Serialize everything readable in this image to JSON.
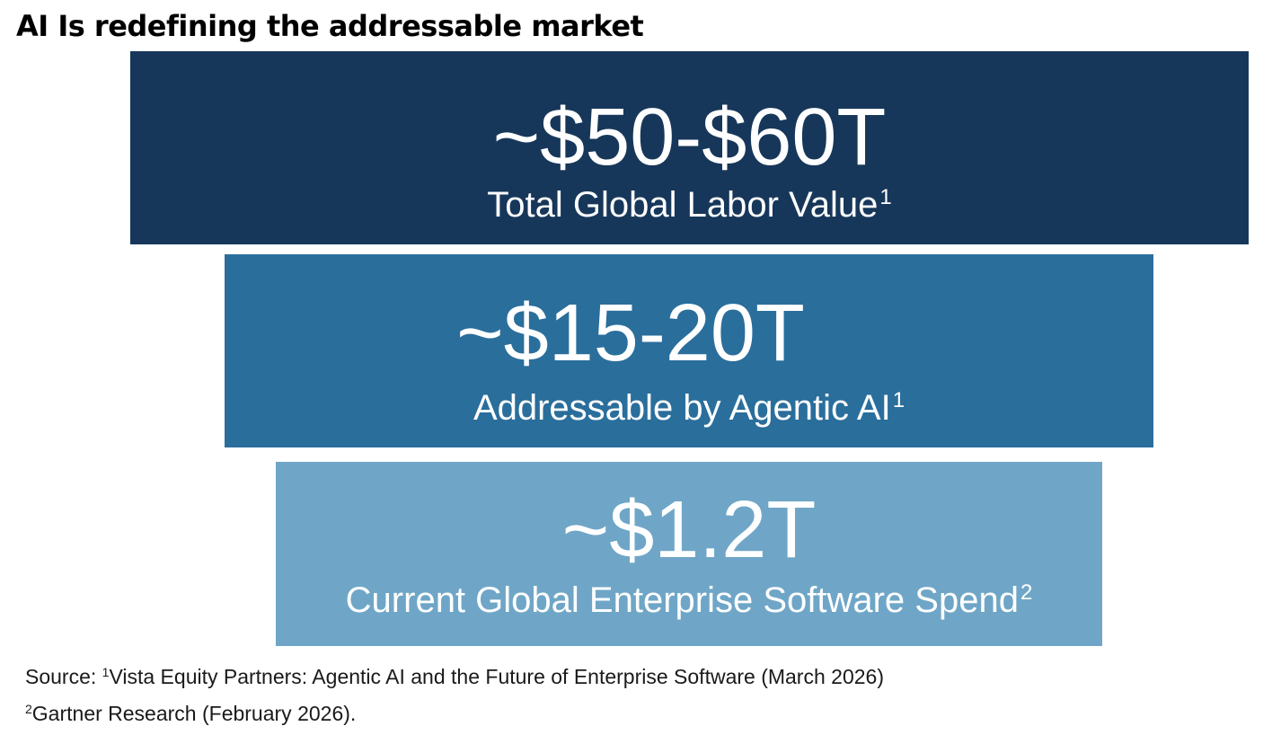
{
  "title": "AI Is redefining the addressable market",
  "tiers": [
    {
      "value": "~$50-$60T",
      "label": "Total Global Labor Value",
      "footnote_ref": "1",
      "color": "#17375a"
    },
    {
      "value": "~$15-20T",
      "label": "Addressable by Agentic AI",
      "footnote_ref": "1",
      "color": "#2a6e9c"
    },
    {
      "value": "~$1.2T",
      "label": "Current Global Enterprise Software Spend",
      "footnote_ref": "2",
      "color": "#6fa6c7"
    }
  ],
  "footnotes": {
    "prefix": "Source: ",
    "note1_ref": "1",
    "note1_text": "Vista Equity Partners: Agentic AI and the Future of Enterprise Software (March 2026)",
    "note2_ref": "2",
    "note2_text": "Gartner Research (February 2026)."
  }
}
